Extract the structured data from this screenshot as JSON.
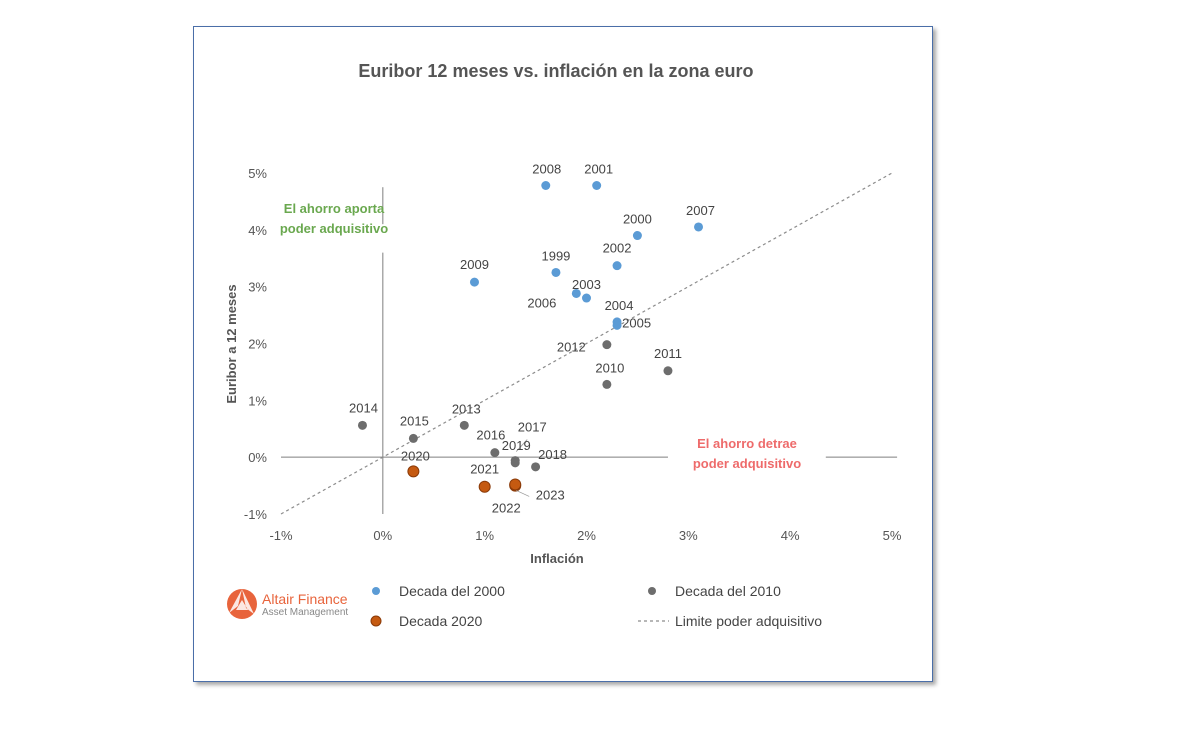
{
  "chart_data": {
    "type": "scatter",
    "title": "Euribor 12 meses vs. inflación en la zona euro",
    "xlabel": "Inflación",
    "ylabel": "Euribor a 12 meses",
    "xlim": [
      -1,
      5
    ],
    "ylim": [
      -1,
      5
    ],
    "x_ticks": [
      "-1%",
      "0%",
      "1%",
      "2%",
      "3%",
      "4%",
      "5%"
    ],
    "y_ticks": [
      "5%",
      "4%",
      "3%",
      "2%",
      "1%",
      "0%",
      "-1%"
    ],
    "grid": false,
    "legend_position": "bottom",
    "series": [
      {
        "name": "Decada del 2000",
        "color": "#5b9bd5",
        "points": [
          {
            "label": "1999",
            "x": 1.7,
            "y": 3.25
          },
          {
            "label": "2000",
            "x": 2.5,
            "y": 3.9
          },
          {
            "label": "2001",
            "x": 2.1,
            "y": 4.78
          },
          {
            "label": "2002",
            "x": 2.3,
            "y": 3.37
          },
          {
            "label": "2003",
            "x": 2.0,
            "y": 2.8
          },
          {
            "label": "2004",
            "x": 2.3,
            "y": 2.38
          },
          {
            "label": "2005",
            "x": 2.3,
            "y": 2.32
          },
          {
            "label": "2006",
            "x": 1.9,
            "y": 2.88
          },
          {
            "label": "2007",
            "x": 3.1,
            "y": 4.05
          },
          {
            "label": "2008",
            "x": 1.6,
            "y": 4.78
          },
          {
            "label": "2009",
            "x": 0.9,
            "y": 3.08
          }
        ]
      },
      {
        "name": "Decada del 2010",
        "color": "#6d6d6d",
        "points": [
          {
            "label": "2010",
            "x": 2.2,
            "y": 1.28
          },
          {
            "label": "2011",
            "x": 2.8,
            "y": 1.52
          },
          {
            "label": "2012",
            "x": 2.2,
            "y": 1.98
          },
          {
            "label": "2013",
            "x": 0.8,
            "y": 0.56
          },
          {
            "label": "2014",
            "x": -0.2,
            "y": 0.56
          },
          {
            "label": "2015",
            "x": 0.3,
            "y": 0.33
          },
          {
            "label": "2016",
            "x": 1.1,
            "y": 0.08
          },
          {
            "label": "2017",
            "x": 1.3,
            "y": -0.06
          },
          {
            "label": "2018",
            "x": 1.5,
            "y": -0.17
          },
          {
            "label": "2019",
            "x": 1.3,
            "y": -0.1
          }
        ]
      },
      {
        "name": "Decada 2020",
        "color": "#c55a11",
        "points": [
          {
            "label": "2020",
            "x": 0.3,
            "y": -0.25
          },
          {
            "label": "2021",
            "x": 1.0,
            "y": -0.52
          },
          {
            "label": "2022",
            "x": 1.3,
            "y": -0.5
          },
          {
            "label": "2023",
            "x": 1.3,
            "y": -0.48
          }
        ]
      }
    ],
    "reference_line": {
      "name": "Limite poder adquisitivo",
      "from": [
        -1,
        -1
      ],
      "to": [
        5,
        5
      ],
      "style": "dashed"
    },
    "annotations": [
      {
        "lines": [
          "El ahorro aporta",
          "poder adquisitivo"
        ],
        "color": "#6aa84f"
      },
      {
        "lines": [
          "El ahorro detrae",
          "poder adquisitivo"
        ],
        "color": "#ee6b6b"
      }
    ]
  },
  "brand": {
    "name": "Altair Finance",
    "subtitle": "Asset Management",
    "color": "#e8643c"
  }
}
